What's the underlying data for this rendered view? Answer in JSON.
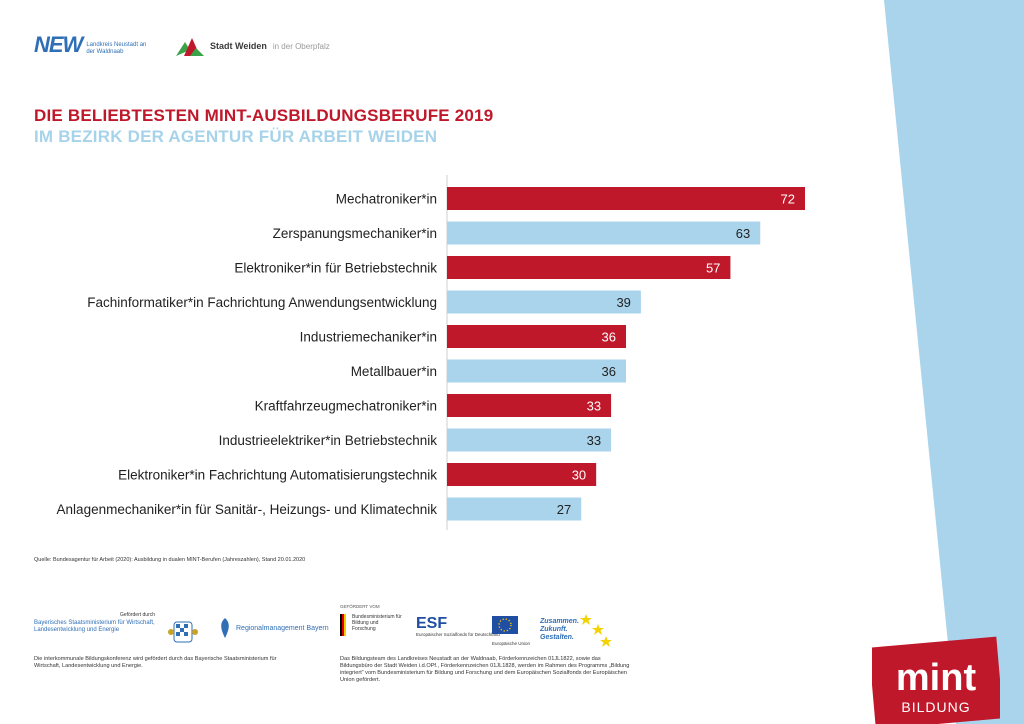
{
  "colors": {
    "red": "#c0182b",
    "light_blue": "#aad4ec",
    "stripe_blue": "#aad4ec"
  },
  "logos": {
    "new": {
      "big": "NEW",
      "small": "Landkreis Neustadt an der Waldnaab"
    },
    "weiden": {
      "name": "Stadt Weiden",
      "region": "in der Oberpfalz"
    }
  },
  "header": {
    "title": "DIE BELIEBTESTEN MINT-AUSBILDUNGSBERUFE 2019",
    "subtitle": "IM BEZIRK DER AGENTUR FÜR ARBEIT WEIDEN"
  },
  "chart_data": {
    "type": "bar",
    "orientation": "horizontal",
    "categories": [
      "Mechatroniker*in",
      "Zerspanungsmechaniker*in",
      "Elektroniker*in für Betriebstechnik",
      "Fachinformatiker*in Fachrichtung Anwendungsentwicklung",
      "Industriemechaniker*in",
      "Metallbauer*in",
      "Kraftfahrzeugmechatroniker*in",
      "Industrieelektriker*in Betriebstechnik",
      "Elektroniker*in Fachrichtung Automatisierungstechnik",
      "Anlagenmechaniker*in für Sanitär-, Heizungs- und Klimatechnik"
    ],
    "values": [
      72,
      63,
      57,
      39,
      36,
      36,
      33,
      33,
      30,
      27
    ],
    "bar_colors": [
      "red",
      "light_blue",
      "red",
      "light_blue",
      "red",
      "light_blue",
      "red",
      "light_blue",
      "red",
      "light_blue"
    ],
    "xlim": [
      0,
      72
    ],
    "grid": false,
    "data_labels": true
  },
  "source": "Quelle: Bundesagentur für Arbeit (2020): Ausbildung in dualen MINT-Berufen (Jahreszahlen), Stand 20.01.2020",
  "footer": {
    "funded_by": "Gefördert durch",
    "ministry": "Bayerisches Staatsministerium für Wirtschaft, Landesentwicklung und Energie",
    "regional_management": "Regionalmanagement Bayern",
    "left_note": "Die interkommunale Bildungskonferenz wird gefördert durch das Bayerische Staatsministerium für Wirtschaft, Landesentwicklung und Energie.",
    "supported_by": "GEFÖRDERT VOM",
    "bmbf": "Bundesministerium für Bildung und Forschung",
    "esf": "ESF",
    "esf_sub": "Europäischer Sozialfonds für Deutschland",
    "eu": "Europäische Union",
    "zusammen": [
      "Zusammen.",
      "Zukunft.",
      "Gestalten."
    ],
    "right_note": "Das Bildungsteam des Landkreises Neustadt an der Waldnaab, Förderkennzeichen 01JL1822, sowie das Bildungsbüro der Stadt Weiden i.d.OPf., Förderkennzeichen 01JL1828, werden im Rahmen des Programms „Bildung integriert“ vom Bundesministerium für Bildung und Forschung und dem Europäischen Sozialfonds der Europäischen Union gefördert."
  },
  "mint_logo": {
    "word": "mint",
    "sub": "BILDUNG"
  }
}
